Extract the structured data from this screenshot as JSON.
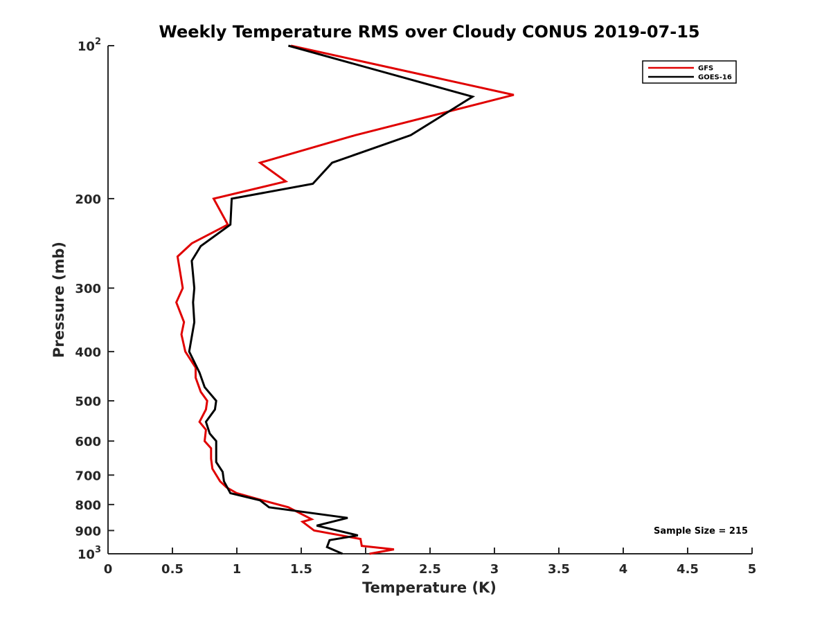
{
  "chart_data": {
    "type": "line",
    "title": "Weekly Temperature RMS over Cloudy CONUS 2019-07-15",
    "xlabel": "Temperature (K)",
    "ylabel": "Pressure (mb)",
    "xlim": [
      0,
      5
    ],
    "ylim": [
      100,
      1000
    ],
    "y_scale": "log",
    "y_reversed": true,
    "grid": false,
    "legend_position": "top-right",
    "x_ticks": [
      {
        "value": 0,
        "label": "0"
      },
      {
        "value": 0.5,
        "label": "0.5"
      },
      {
        "value": 1,
        "label": "1"
      },
      {
        "value": 1.5,
        "label": "1.5"
      },
      {
        "value": 2,
        "label": "2"
      },
      {
        "value": 2.5,
        "label": "2.5"
      },
      {
        "value": 3,
        "label": "3"
      },
      {
        "value": 3.5,
        "label": "3.5"
      },
      {
        "value": 4,
        "label": "4"
      },
      {
        "value": 4.5,
        "label": "4.5"
      },
      {
        "value": 5,
        "label": "5"
      }
    ],
    "y_ticks": [
      {
        "value": 100,
        "label": "10",
        "exponent": "2"
      },
      {
        "value": 200,
        "label": "200"
      },
      {
        "value": 300,
        "label": "300"
      },
      {
        "value": 400,
        "label": "400"
      },
      {
        "value": 500,
        "label": "500"
      },
      {
        "value": 600,
        "label": "600"
      },
      {
        "value": 700,
        "label": "700"
      },
      {
        "value": 800,
        "label": "800"
      },
      {
        "value": 900,
        "label": "900"
      },
      {
        "value": 1000,
        "label": "10",
        "exponent": "3"
      }
    ],
    "series": [
      {
        "name": "GFS",
        "color": "#e00000",
        "points": [
          {
            "x": 1.42,
            "y": 100
          },
          {
            "x": 3.15,
            "y": 125
          },
          {
            "x": 1.92,
            "y": 150
          },
          {
            "x": 1.18,
            "y": 170
          },
          {
            "x": 1.38,
            "y": 185
          },
          {
            "x": 0.82,
            "y": 200
          },
          {
            "x": 0.93,
            "y": 225
          },
          {
            "x": 0.65,
            "y": 245
          },
          {
            "x": 0.54,
            "y": 260
          },
          {
            "x": 0.58,
            "y": 300
          },
          {
            "x": 0.53,
            "y": 320
          },
          {
            "x": 0.59,
            "y": 350
          },
          {
            "x": 0.57,
            "y": 370
          },
          {
            "x": 0.6,
            "y": 400
          },
          {
            "x": 0.68,
            "y": 430
          },
          {
            "x": 0.68,
            "y": 450
          },
          {
            "x": 0.72,
            "y": 480
          },
          {
            "x": 0.77,
            "y": 500
          },
          {
            "x": 0.76,
            "y": 520
          },
          {
            "x": 0.71,
            "y": 550
          },
          {
            "x": 0.76,
            "y": 570
          },
          {
            "x": 0.75,
            "y": 600
          },
          {
            "x": 0.8,
            "y": 620
          },
          {
            "x": 0.8,
            "y": 650
          },
          {
            "x": 0.81,
            "y": 680
          },
          {
            "x": 0.87,
            "y": 720
          },
          {
            "x": 0.92,
            "y": 740
          },
          {
            "x": 1.0,
            "y": 760
          },
          {
            "x": 1.2,
            "y": 785
          },
          {
            "x": 1.4,
            "y": 810
          },
          {
            "x": 1.58,
            "y": 855
          },
          {
            "x": 1.51,
            "y": 865
          },
          {
            "x": 1.6,
            "y": 900
          },
          {
            "x": 1.96,
            "y": 935
          },
          {
            "x": 1.97,
            "y": 965
          },
          {
            "x": 2.22,
            "y": 980
          },
          {
            "x": 2.03,
            "y": 1000
          }
        ]
      },
      {
        "name": "GOES-16",
        "color": "#000000",
        "points": [
          {
            "x": 1.4,
            "y": 100
          },
          {
            "x": 2.83,
            "y": 126
          },
          {
            "x": 2.35,
            "y": 150
          },
          {
            "x": 1.74,
            "y": 170
          },
          {
            "x": 1.59,
            "y": 187
          },
          {
            "x": 0.96,
            "y": 200
          },
          {
            "x": 0.95,
            "y": 225
          },
          {
            "x": 0.72,
            "y": 248
          },
          {
            "x": 0.65,
            "y": 265
          },
          {
            "x": 0.67,
            "y": 300
          },
          {
            "x": 0.66,
            "y": 320
          },
          {
            "x": 0.67,
            "y": 350
          },
          {
            "x": 0.63,
            "y": 400
          },
          {
            "x": 0.71,
            "y": 440
          },
          {
            "x": 0.75,
            "y": 470
          },
          {
            "x": 0.84,
            "y": 500
          },
          {
            "x": 0.83,
            "y": 520
          },
          {
            "x": 0.76,
            "y": 550
          },
          {
            "x": 0.79,
            "y": 580
          },
          {
            "x": 0.84,
            "y": 600
          },
          {
            "x": 0.84,
            "y": 620
          },
          {
            "x": 0.84,
            "y": 660
          },
          {
            "x": 0.89,
            "y": 690
          },
          {
            "x": 0.9,
            "y": 720
          },
          {
            "x": 0.95,
            "y": 760
          },
          {
            "x": 1.18,
            "y": 785
          },
          {
            "x": 1.25,
            "y": 810
          },
          {
            "x": 1.86,
            "y": 850
          },
          {
            "x": 1.62,
            "y": 880
          },
          {
            "x": 1.94,
            "y": 920
          },
          {
            "x": 1.72,
            "y": 940
          },
          {
            "x": 1.7,
            "y": 970
          },
          {
            "x": 1.82,
            "y": 1000
          }
        ]
      }
    ],
    "annotations": [
      {
        "text": "Sample Size = 215",
        "position": "bottom-right"
      }
    ]
  }
}
